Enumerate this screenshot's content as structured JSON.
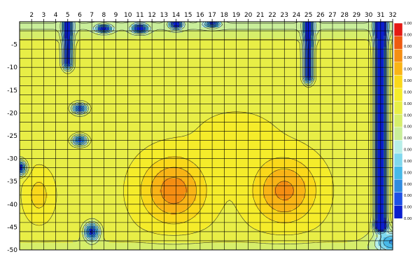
{
  "chart_data": {
    "type": "heatmap",
    "title": "",
    "xlabel": "",
    "ylabel": "",
    "x": [
      1,
      2,
      3,
      4,
      5,
      6,
      7,
      8,
      9,
      10,
      11,
      12,
      13,
      14,
      15,
      16,
      17,
      18,
      19,
      20,
      21,
      22,
      23,
      24,
      25,
      26,
      27,
      28,
      29,
      30,
      31,
      32
    ],
    "x_tick_labels": [
      "2",
      "3",
      "4",
      "5",
      "6",
      "7",
      "8",
      "9",
      "10",
      "11",
      "12",
      "13",
      "14",
      "15",
      "16",
      "17",
      "18",
      "19",
      "20",
      "21",
      "22",
      "23",
      "24",
      "25",
      "26",
      "27",
      "28",
      "29",
      "30",
      "31",
      "32"
    ],
    "y_tick_labels": [
      "-5",
      "-10",
      "-15",
      "-20",
      "-25",
      "-30",
      "-35",
      "-40",
      "-45",
      "-50"
    ],
    "xlim": [
      1,
      32
    ],
    "ylim": [
      -50,
      0
    ],
    "grid": true,
    "contour_lines": true,
    "z_range": [
      0,
      1
    ],
    "colorbar_tick_labels": [
      "0.00",
      "0.00",
      "0.00",
      "0.00",
      "0.00",
      "0.00",
      "0.00",
      "0.00",
      "0.00",
      "0.00",
      "0.00",
      "0.00",
      "0.00",
      "0.00",
      "0.00",
      "0.00",
      "0.00",
      "0.00"
    ],
    "colorscale": [
      "#0a1ecf",
      "#1e50e6",
      "#2f8be0",
      "#47b9e8",
      "#80d8ee",
      "#b8eee8",
      "#c9ee9a",
      "#d6ee6a",
      "#e8ee46",
      "#f5ec2a",
      "#fad81a",
      "#f9b416",
      "#f58e12",
      "#ee5a10",
      "#e41a14"
    ],
    "base_level": 0.58,
    "features": [
      {
        "kind": "hotspot",
        "x": 13.8,
        "y": -37,
        "sx": 2.6,
        "sy": 7,
        "amp": 0.26
      },
      {
        "kind": "hotspot",
        "x": 23,
        "y": -37,
        "sx": 2.6,
        "sy": 7,
        "amp": 0.24
      },
      {
        "kind": "hotspot",
        "x": 2.6,
        "y": -38,
        "sx": 1.1,
        "sy": 5,
        "amp": 0.12
      },
      {
        "kind": "hotspot",
        "x": 19,
        "y": -25,
        "sx": 3,
        "sy": 5,
        "amp": 0.06
      },
      {
        "kind": "column",
        "x": 31,
        "y_from": 0,
        "y_to": -44,
        "width": 0.45,
        "depth": 0.82
      },
      {
        "kind": "column",
        "x": 5,
        "y_from": 0,
        "y_to": -9,
        "width": 0.4,
        "depth": 0.55
      },
      {
        "kind": "column",
        "x": 25,
        "y_from": 0,
        "y_to": -12,
        "width": 0.4,
        "depth": 0.55
      },
      {
        "kind": "spot",
        "x": 6,
        "y": -19,
        "sx": 0.6,
        "sy": 1.1,
        "depth": 0.5
      },
      {
        "kind": "spot",
        "x": 6,
        "y": -26,
        "sx": 0.6,
        "sy": 1.1,
        "depth": 0.5
      },
      {
        "kind": "spot",
        "x": 7,
        "y": -46,
        "sx": 0.6,
        "sy": 1.8,
        "depth": 0.55
      },
      {
        "kind": "spot",
        "x": 8,
        "y": -1.5,
        "sx": 0.6,
        "sy": 0.8,
        "depth": 0.5
      },
      {
        "kind": "spot",
        "x": 11,
        "y": -1.5,
        "sx": 0.6,
        "sy": 0.9,
        "depth": 0.55
      },
      {
        "kind": "spot",
        "x": 14,
        "y": -0.5,
        "sx": 0.5,
        "sy": 0.9,
        "depth": 0.6
      },
      {
        "kind": "spot",
        "x": 17,
        "y": -0.5,
        "sx": 0.6,
        "sy": 0.7,
        "depth": 0.45
      },
      {
        "kind": "spot",
        "x": 1,
        "y": -32,
        "sx": 0.5,
        "sy": 1.5,
        "depth": 0.6
      },
      {
        "kind": "spot",
        "x": 31,
        "y": -45,
        "sx": 0.5,
        "sy": 1,
        "depth": 0.4
      },
      {
        "kind": "spot",
        "x": 32,
        "y": -48,
        "sx": 1.5,
        "sy": 2.5,
        "depth": 0.35
      },
      {
        "kind": "band",
        "y_center": -1,
        "sy": 3,
        "depth": 0.12
      },
      {
        "kind": "band",
        "y_center": -50,
        "sy": 2.5,
        "depth": 0.08
      }
    ]
  }
}
